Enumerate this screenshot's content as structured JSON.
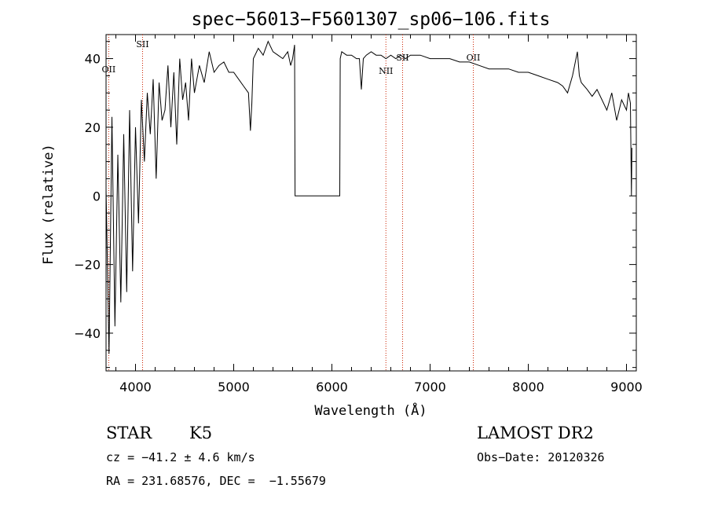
{
  "chart_data": {
    "type": "line",
    "title": "spec−56013−F5601307_sp06−106.fits",
    "xlabel": "Wavelength (Å)",
    "ylabel": "Flux (relative)",
    "xlim": [
      3700,
      9100
    ],
    "ylim": [
      -51,
      47
    ],
    "xticks": [
      4000,
      5000,
      6000,
      7000,
      8000,
      9000
    ],
    "xtick_labels": [
      "4000",
      "5000",
      "6000",
      "7000",
      "8000",
      "9000"
    ],
    "yticks": [
      -40,
      -20,
      0,
      20,
      40
    ],
    "ytick_labels": [
      "−40",
      "−20",
      "0",
      "20",
      "40"
    ],
    "grid": false,
    "series": [
      {
        "x": [
          3700,
          3730,
          3760,
          3790,
          3820,
          3850,
          3880,
          3910,
          3940,
          3970,
          4000,
          4030,
          4060,
          4090,
          4120,
          4150,
          4180,
          4210,
          4240,
          4270,
          4300,
          4330,
          4360,
          4390,
          4420,
          4450,
          4480,
          4510,
          4540,
          4570,
          4600,
          4650,
          4700,
          4750,
          4800,
          4850,
          4900,
          4950,
          5000,
          5050,
          5100,
          5150,
          5170,
          5185,
          5200,
          5250,
          5300,
          5350,
          5400,
          5450,
          5500,
          5550,
          5580,
          5600,
          5620,
          5625,
          6080,
          6085,
          6100,
          6150,
          6200,
          6250,
          6280,
          6300,
          6320,
          6350,
          6400,
          6450,
          6500,
          6550,
          6600,
          6650,
          6700,
          6750,
          6800,
          6900,
          7000,
          7100,
          7200,
          7300,
          7400,
          7500,
          7600,
          7700,
          7800,
          7900,
          8000,
          8100,
          8200,
          8300,
          8350,
          8400,
          8450,
          8500,
          8520,
          8540,
          8600,
          8650,
          8700,
          8750,
          8800,
          8850,
          8900,
          8950,
          9000,
          9020,
          9040,
          9050,
          9055
        ],
        "y": [
          2,
          -46,
          23,
          -38,
          12,
          -31,
          18,
          -28,
          25,
          -22,
          20,
          -8,
          28,
          10,
          30,
          18,
          34,
          5,
          33,
          22,
          25,
          38,
          20,
          36,
          15,
          40,
          28,
          33,
          22,
          40,
          30,
          38,
          33,
          42,
          36,
          38,
          39,
          36,
          36,
          34,
          32,
          30,
          19,
          27,
          40,
          43,
          41,
          45,
          42,
          41,
          40,
          42,
          38,
          40,
          44,
          0,
          0,
          40,
          42,
          41,
          41,
          40,
          40,
          31,
          40,
          41,
          42,
          41,
          41,
          40,
          41,
          40,
          41,
          40,
          41,
          41,
          40,
          40,
          40,
          39,
          39,
          38,
          37,
          37,
          37,
          36,
          36,
          35,
          34,
          33,
          32,
          30,
          35,
          42,
          35,
          33,
          31,
          29,
          31,
          28,
          25,
          30,
          22,
          28,
          25,
          30,
          27,
          0,
          14
        ]
      }
    ],
    "annotations": [
      {
        "label": "OII",
        "x": 3727
      },
      {
        "label": "SII",
        "x": 4072
      },
      {
        "label": "NII",
        "x": 6550
      },
      {
        "label": "SII",
        "x": 6720
      },
      {
        "label": "OII",
        "x": 7440
      }
    ],
    "line_marker_color": "#cc2200",
    "info": {
      "object_class": "STAR",
      "subclass": "K5",
      "survey": "LAMOST DR2",
      "cz": "cz = −41.2 ± 4.6 km/s",
      "obs_date": "Obs−Date: 20120326",
      "coords": "RA = 231.68576, DEC =  −1.55679"
    }
  }
}
